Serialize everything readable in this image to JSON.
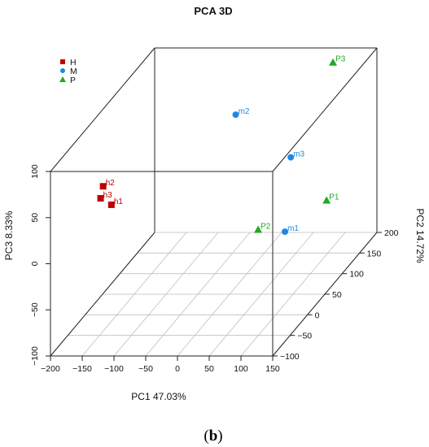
{
  "chart_data": {
    "type": "scatter",
    "title": "PCA 3D",
    "xlabel": "PC1 47.03%",
    "ylabel": "PC2 14.72%",
    "zlabel": "PC3 8.33%",
    "xlim": [
      -200,
      150
    ],
    "ylim": [
      -100,
      200
    ],
    "zlim": [
      -100,
      100
    ],
    "xticks": [
      "−200",
      "−150",
      "−100",
      "−50",
      "0",
      "50",
      "100",
      "150"
    ],
    "yticks": [
      "−100",
      "−50",
      "0",
      "50",
      "100",
      "150",
      "200"
    ],
    "zticks": [
      "−100",
      "−50",
      "0",
      "50",
      "100"
    ],
    "legend_position": "top-left",
    "grid": true,
    "series": [
      {
        "name": "H",
        "color": "#c00000",
        "marker": "square",
        "points": [
          {
            "label": "h1",
            "x": -115,
            "y": -80,
            "z": 55
          },
          {
            "label": "h2",
            "x": -128,
            "y": -80,
            "z": 75
          },
          {
            "label": "h3",
            "x": -132,
            "y": -80,
            "z": 62
          }
        ]
      },
      {
        "name": "M",
        "color": "#1e88e5",
        "marker": "circle",
        "points": [
          {
            "label": "m1",
            "x": 90,
            "y": 45,
            "z": -30
          },
          {
            "label": "m2",
            "x": -45,
            "y": 150,
            "z": 50
          },
          {
            "label": "m3",
            "x": 80,
            "y": 80,
            "z": 35
          }
        ]
      },
      {
        "name": "P",
        "color": "#22aa22",
        "marker": "triangle",
        "points": [
          {
            "label": "P1",
            "x": 120,
            "y": 110,
            "z": -25
          },
          {
            "label": "P2",
            "x": 45,
            "y": 50,
            "z": -30
          },
          {
            "label": "P3",
            "x": 100,
            "y": 165,
            "z": 100
          }
        ]
      }
    ]
  },
  "caption": "(b)"
}
